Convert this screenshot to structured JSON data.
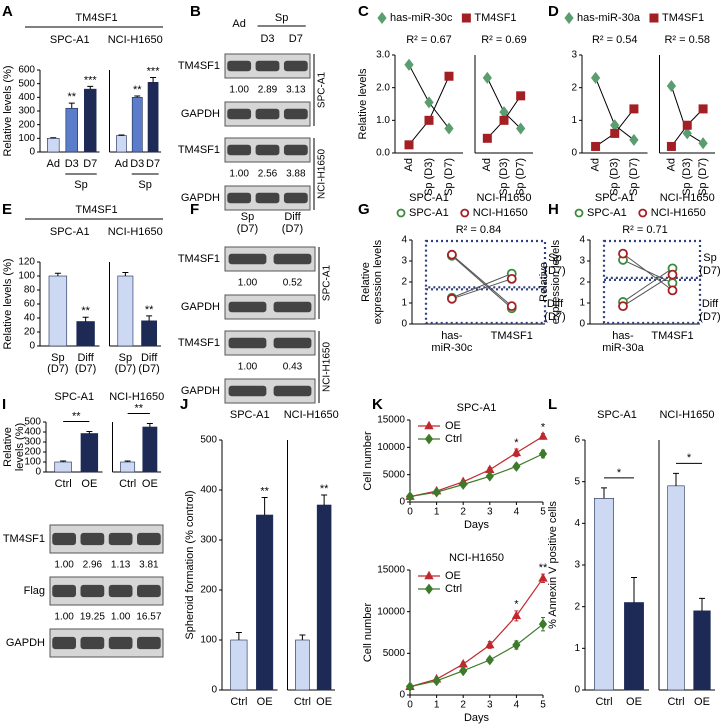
{
  "chart_data": [
    {
      "panel": "A",
      "type": "bar",
      "title": "TM4SF1",
      "y_label": "Relative levels (%)",
      "ylim": [
        0,
        600
      ],
      "yticks": [
        0,
        100,
        200,
        300,
        400,
        500,
        600
      ],
      "colors": [
        "#cdd8f2",
        "#5b7cc8",
        "#1c2a55"
      ],
      "category_bracket": "Sp",
      "groups": [
        {
          "name": "SPC-A1",
          "categories": [
            "Ad",
            "D3",
            "D7"
          ],
          "values": [
            100,
            320,
            460
          ],
          "errors": [
            4,
            38,
            20
          ],
          "sig": [
            null,
            "**",
            "***"
          ]
        },
        {
          "name": "NCI-H1650",
          "categories": [
            "Ad",
            "D3",
            "D7"
          ],
          "values": [
            120,
            400,
            510
          ],
          "errors": [
            4,
            10,
            35
          ],
          "sig": [
            null,
            "**",
            "***"
          ]
        }
      ]
    },
    {
      "panel": "C",
      "type": "paired",
      "y_label": "Relative levels",
      "ylim": [
        0,
        3
      ],
      "yticks": [
        {
          "value": 0,
          "label": "0.0"
        },
        {
          "value": 1,
          "label": "1.0"
        },
        {
          "value": 2,
          "label": "2.0"
        },
        {
          "value": 3,
          "label": "3.0"
        }
      ],
      "categories": [
        "Ad",
        "Sp (D3)",
        "Sp (D7)"
      ],
      "series": [
        {
          "name": "has-miR-30c",
          "color": "#5a9e6f",
          "marker": "diamond"
        },
        {
          "name": "TM4SF1",
          "color": "#a31f24",
          "marker": "square"
        }
      ],
      "groups": [
        {
          "name": "SPC-A1",
          "r2": "R² = 0.67",
          "values": [
            [
              2.7,
              1.55,
              0.75
            ],
            [
              0.25,
              1.0,
              2.35
            ]
          ]
        },
        {
          "name": "NCI-H1650",
          "r2": "R² = 0.69",
          "values": [
            [
              2.3,
              1.25,
              0.75
            ],
            [
              0.45,
              1.0,
              1.75
            ]
          ]
        }
      ]
    },
    {
      "panel": "D",
      "type": "paired",
      "ylim": [
        0,
        3
      ],
      "yticks": [
        0,
        1,
        2,
        3
      ],
      "categories": [
        "Ad",
        "Sp (D3)",
        "Sp (D7)"
      ],
      "series": [
        {
          "name": "has-miR-30a",
          "color": "#5a9e6f",
          "marker": "diamond"
        },
        {
          "name": "TM4SF1",
          "color": "#a31f24",
          "marker": "square"
        }
      ],
      "groups": [
        {
          "name": "SPC-A1",
          "r2": "R² = 0.54",
          "values": [
            [
              2.3,
              0.85,
              0.4
            ],
            [
              0.2,
              0.6,
              1.35
            ]
          ]
        },
        {
          "name": "NCI-H1650",
          "r2": "R² = 0.58",
          "values": [
            [
              2.05,
              0.6,
              0.3
            ],
            [
              0.2,
              0.85,
              1.35
            ]
          ]
        }
      ]
    },
    {
      "panel": "E",
      "type": "bar",
      "title": "TM4SF1",
      "y_label": "Relative levels (%)",
      "ylim": [
        0,
        120
      ],
      "yticks": [
        0,
        20,
        40,
        60,
        80,
        100,
        120
      ],
      "colors": [
        "#cdd8f2",
        "#1c2a55"
      ],
      "groups": [
        {
          "name": "SPC-A1",
          "categories": [
            "Sp (D7)",
            "Diff (D7)"
          ],
          "values": [
            100,
            35
          ],
          "errors": [
            4,
            6
          ],
          "sig": [
            null,
            "**"
          ]
        },
        {
          "name": "NCI-H1650",
          "categories": [
            "Sp (D7)",
            "Diff (D7)"
          ],
          "values": [
            100,
            36
          ],
          "errors": [
            5,
            7
          ],
          "sig": [
            null,
            "**"
          ]
        }
      ]
    },
    {
      "panel": "G",
      "type": "crossover",
      "y_label": [
        "Relative",
        "expression levels"
      ],
      "r2": "R² = 0.84",
      "ylim": [
        0,
        4
      ],
      "yticks": [
        0,
        1,
        2,
        3,
        4
      ],
      "categories": [
        "has-miR-30c",
        "TM4SF1"
      ],
      "conditions": [
        "Sp (D7)",
        "Diff (D7)"
      ],
      "series": [
        {
          "name": "SPC-A1",
          "color": "#3d8a3d",
          "sp": [
            3.25,
            2.4
          ],
          "diff": [
            1.25,
            0.75
          ]
        },
        {
          "name": "NCI-H1650",
          "color": "#a31f24",
          "sp": [
            3.3,
            2.15
          ],
          "diff": [
            1.2,
            0.85
          ]
        }
      ]
    },
    {
      "panel": "H",
      "type": "crossover",
      "y_label": [
        "Relative",
        "expression levels"
      ],
      "r2": "R² = 0.71",
      "ylim": [
        0,
        4
      ],
      "yticks": [
        0,
        1,
        2,
        3,
        4
      ],
      "categories": [
        "has-miR-30a",
        "TM4SF1"
      ],
      "conditions": [
        "Sp (D7)",
        "Diff (D7)"
      ],
      "series": [
        {
          "name": "SPC-A1",
          "color": "#3d8a3d",
          "sp": [
            3.05,
            2.65
          ],
          "diff": [
            1.05,
            1.95
          ]
        },
        {
          "name": "NCI-H1650",
          "color": "#a31f24",
          "sp": [
            3.35,
            2.35
          ],
          "diff": [
            0.85,
            1.6
          ]
        }
      ]
    },
    {
      "panel": "I",
      "type": "bar",
      "y_label": [
        "Relative",
        "levels (%)"
      ],
      "ylim": [
        0,
        500
      ],
      "yticks": [
        0,
        100,
        200,
        300,
        400,
        500
      ],
      "colors": [
        "#cdd8f2",
        "#1c2a55"
      ],
      "sig_bracket": true,
      "groups": [
        {
          "name": "SPC-A1",
          "categories": [
            "Ctrl",
            "OE"
          ],
          "values": [
            100,
            385
          ],
          "errors": [
            10,
            20
          ],
          "sig": [
            null,
            "**"
          ]
        },
        {
          "name": "NCI-H1650",
          "categories": [
            "Ctrl",
            "OE"
          ],
          "values": [
            100,
            450
          ],
          "errors": [
            10,
            35
          ],
          "sig": [
            null,
            "**"
          ]
        }
      ]
    },
    {
      "panel": "J",
      "type": "bar",
      "y_label": "Spheroid formation (% control)",
      "ylim": [
        0,
        500
      ],
      "yticks": [
        0,
        100,
        200,
        300,
        400,
        500
      ],
      "colors": [
        "#cdd8f2",
        "#1c2a55"
      ],
      "groups": [
        {
          "name": "SPC-A1",
          "categories": [
            "Ctrl",
            "OE"
          ],
          "values": [
            100,
            350
          ],
          "errors": [
            15,
            35
          ],
          "sig": [
            null,
            "**"
          ]
        },
        {
          "name": "NCI-H1650",
          "categories": [
            "Ctrl",
            "OE"
          ],
          "values": [
            100,
            370
          ],
          "errors": [
            10,
            20
          ],
          "sig": [
            null,
            "**"
          ]
        }
      ]
    },
    {
      "panel": "K",
      "type": "line",
      "title": "SPC-A1",
      "x_label": "Days",
      "y_label": "Cell number",
      "x": [
        0,
        1,
        2,
        3,
        4,
        5
      ],
      "xlim": [
        0,
        5
      ],
      "xticks": [
        0,
        1,
        2,
        3,
        4,
        5
      ],
      "ylim": [
        0,
        15000
      ],
      "yticks": [
        0,
        5000,
        10000,
        15000
      ],
      "legend": "top-left",
      "series": [
        {
          "name": "OE",
          "color": "#c0282e",
          "marker": "triangle",
          "values": [
            1000,
            2000,
            3700,
            5900,
            9000,
            12000
          ],
          "errors": [
            100,
            150,
            250,
            400,
            700,
            500
          ]
        },
        {
          "name": "Ctrl",
          "color": "#3d7a2a",
          "marker": "diamond",
          "values": [
            1000,
            1800,
            3200,
            4700,
            6500,
            8800
          ],
          "errors": [
            100,
            150,
            200,
            300,
            500,
            700
          ]
        }
      ],
      "sig": [
        null,
        null,
        null,
        null,
        "*",
        "*"
      ]
    },
    {
      "type": "line",
      "title": "NCI-H1650",
      "x_label": "Days",
      "y_label": "Cell number",
      "x": [
        0,
        1,
        2,
        3,
        4,
        5
      ],
      "xlim": [
        0,
        5
      ],
      "xticks": [
        0,
        1,
        2,
        3,
        4,
        5
      ],
      "ylim": [
        0,
        15000
      ],
      "yticks": [
        0,
        5000,
        10000,
        15000
      ],
      "legend": "top-left",
      "series": [
        {
          "name": "OE",
          "color": "#c0282e",
          "marker": "triangle",
          "values": [
            1000,
            1900,
            3700,
            6000,
            9500,
            14000
          ],
          "errors": [
            100,
            150,
            250,
            400,
            600,
            500
          ]
        },
        {
          "name": "Ctrl",
          "color": "#3d7a2a",
          "marker": "diamond",
          "values": [
            1000,
            1700,
            2900,
            4200,
            6000,
            8500
          ],
          "errors": [
            100,
            150,
            200,
            300,
            500,
            800
          ]
        }
      ],
      "sig": [
        null,
        null,
        null,
        null,
        "*",
        "**"
      ]
    },
    {
      "panel": "L",
      "type": "bar",
      "y_label": "% Annexin V positive cells",
      "ylim": [
        0,
        6
      ],
      "yticks": [
        0,
        1,
        2,
        3,
        4,
        5,
        6
      ],
      "colors": [
        "#cdd8f2",
        "#1c2a55"
      ],
      "sig_bracket": true,
      "groups": [
        {
          "name": "SPC-A1",
          "categories": [
            "Ctrl",
            "OE"
          ],
          "values": [
            4.6,
            2.1
          ],
          "errors": [
            0.25,
            0.6
          ],
          "sig": [
            null,
            "*"
          ]
        },
        {
          "name": "NCI-H1650",
          "categories": [
            "Ctrl",
            "OE"
          ],
          "values": [
            4.9,
            1.9
          ],
          "errors": [
            0.3,
            0.3
          ],
          "sig": [
            null,
            "*"
          ]
        }
      ]
    }
  ],
  "blots": [
    {
      "panel": "B",
      "columns": [
        "Ad",
        "D3",
        "D7"
      ],
      "column_bracket": "Sp",
      "sections": [
        {
          "side_label": "SPC-A1",
          "rows": [
            {
              "label": "TM4SF1",
              "values": [
                "1.00",
                "2.89",
                "3.13"
              ]
            },
            {
              "label": "GAPDH"
            }
          ]
        },
        {
          "side_label": "NCI-H1650",
          "rows": [
            {
              "label": "TM4SF1",
              "values": [
                "1.00",
                "2.56",
                "3.88"
              ]
            },
            {
              "label": "GAPDH"
            }
          ]
        }
      ]
    },
    {
      "panel": "F",
      "columns": [
        "Sp (D7)",
        "Diff (D7)"
      ],
      "sections": [
        {
          "side_label": "SPC-A1",
          "rows": [
            {
              "label": "TM4SF1",
              "values": [
                "1.00",
                "0.52"
              ]
            },
            {
              "label": "GAPDH"
            }
          ]
        },
        {
          "side_label": "NCI-H1650",
          "rows": [
            {
              "label": "TM4SF1",
              "values": [
                "1.00",
                "0.43"
              ]
            },
            {
              "label": "GAPDH"
            }
          ]
        }
      ]
    },
    {
      "sections": [
        {
          "rows": [
            {
              "label": "TM4SF1",
              "values": [
                "1.00",
                "2.96",
                "1.13",
                "3.81"
              ]
            },
            {
              "label": "Flag",
              "values": [
                "1.00",
                "19.25",
                "1.00",
                "16.57"
              ]
            },
            {
              "label": "GAPDH"
            }
          ]
        }
      ]
    }
  ]
}
